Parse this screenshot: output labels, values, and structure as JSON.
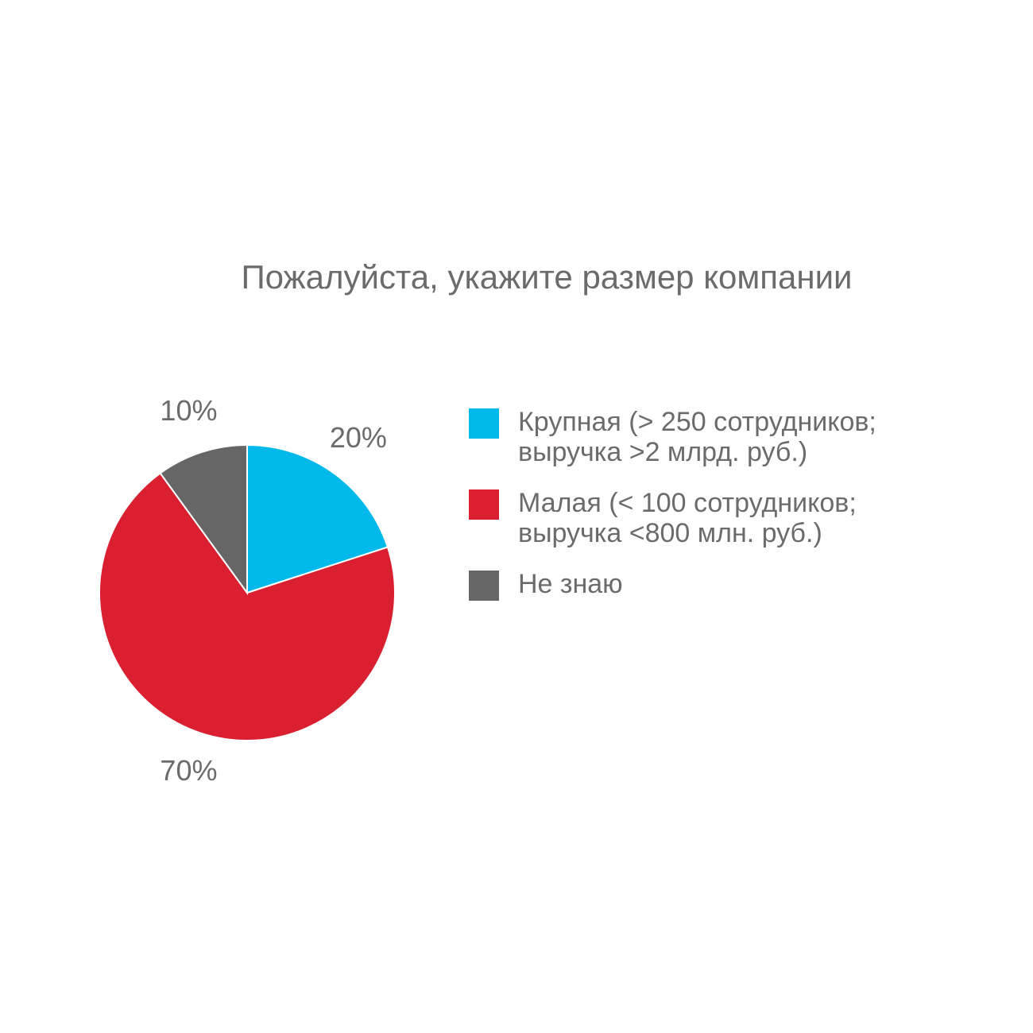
{
  "chart_data": {
    "type": "pie",
    "title": "Пожалуйста, укажите размер компании",
    "categories": [
      "Крупная (> 250 сотрудников; выручка >2 млрд. руб.)",
      "Малая (< 100 сотрудников; выручка <800 млн. руб.)",
      "Не знаю"
    ],
    "values": [
      20,
      70,
      10
    ],
    "value_labels": [
      "20%",
      "70%",
      "10%"
    ],
    "colors": [
      "#00b9eb",
      "#d91f30",
      "#666666"
    ]
  }
}
